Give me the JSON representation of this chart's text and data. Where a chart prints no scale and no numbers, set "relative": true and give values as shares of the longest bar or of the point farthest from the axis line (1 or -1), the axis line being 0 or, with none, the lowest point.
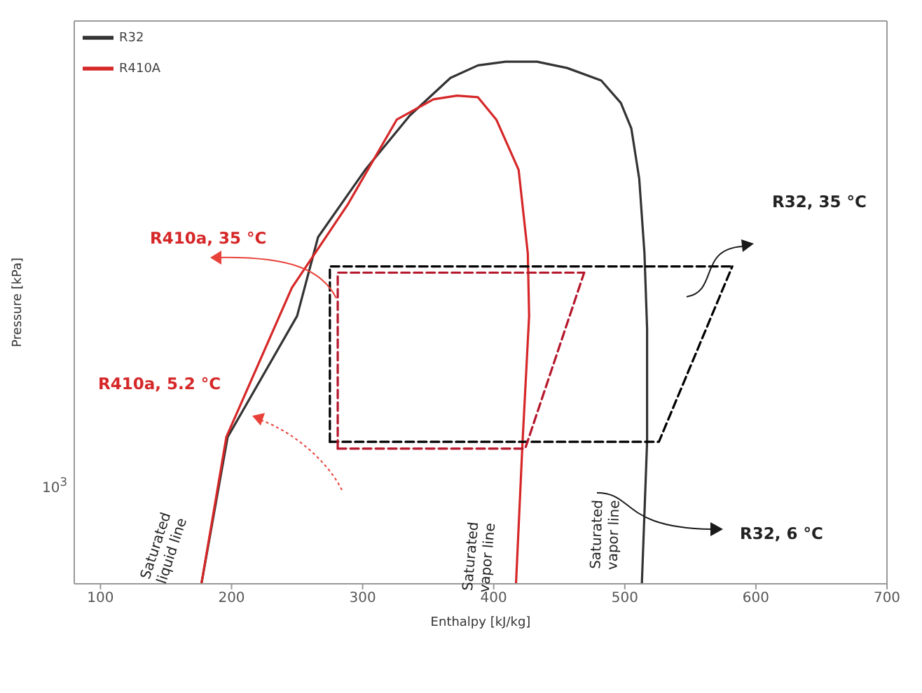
{
  "chart_data": {
    "type": "line",
    "xlabel": "Enthalpy [kJ/kg]",
    "ylabel": "Pressure [kPa]",
    "relative": true,
    "xlim": [
      80,
      700
    ],
    "xticks": [
      100,
      200,
      300,
      400,
      500,
      600,
      700
    ],
    "legend": "top left",
    "marker": "none",
    "series": [
      {
        "name": "R32",
        "color": "#333333",
        "line_style": "solid",
        "x": [
          177,
          197,
          250,
          266,
          302,
          336,
          367,
          388,
          409,
          433,
          456,
          482,
          497,
          505,
          511,
          515,
          517,
          517,
          513
        ],
        "values": [
          0,
          0.281,
          0.513,
          0.664,
          0.793,
          0.897,
          0.969,
          0.993,
          1,
          1,
          0.988,
          0.964,
          0.921,
          0.872,
          0.776,
          0.633,
          0.489,
          0.272,
          0
        ]
      },
      {
        "name": "R410A",
        "color": "#d62728",
        "line_style": "solid",
        "x": [
          177,
          196,
          246,
          289,
          326,
          354,
          372,
          388,
          402,
          419,
          426,
          427,
          422,
          417
        ],
        "values": [
          0,
          0.281,
          0.567,
          0.728,
          0.889,
          0.928,
          0.935,
          0.932,
          0.889,
          0.793,
          0.633,
          0.513,
          0.272,
          0
        ]
      },
      {
        "color": "#000000",
        "line_style": "dashed",
        "x": [
          275,
          275,
          582
        ],
        "values": [
          0.272,
          0.608,
          0.608
        ]
      },
      {
        "color": "#000000",
        "line_style": "dashed",
        "x": [
          275,
          526,
          582
        ],
        "values": [
          0.272,
          0.272,
          0.608
        ]
      },
      {
        "color": "#b5172b",
        "line_style": "dashed",
        "x": [
          281,
          281,
          469
        ],
        "values": [
          0.259,
          0.596,
          0.596
        ]
      },
      {
        "color": "#b5172b",
        "line_style": "dashed",
        "x": [
          281,
          424,
          469
        ],
        "values": [
          0.259,
          0.259,
          0.596
        ]
      }
    ],
    "annotations": [
      "R410a, 35 °C",
      "R410a, 5.2 °C",
      "R32, 35 °C",
      "R32, 6 °C",
      "Saturated liquid line",
      "Saturated vapor line",
      "Saturated vapor line",
      "10$^{3}$"
    ]
  }
}
